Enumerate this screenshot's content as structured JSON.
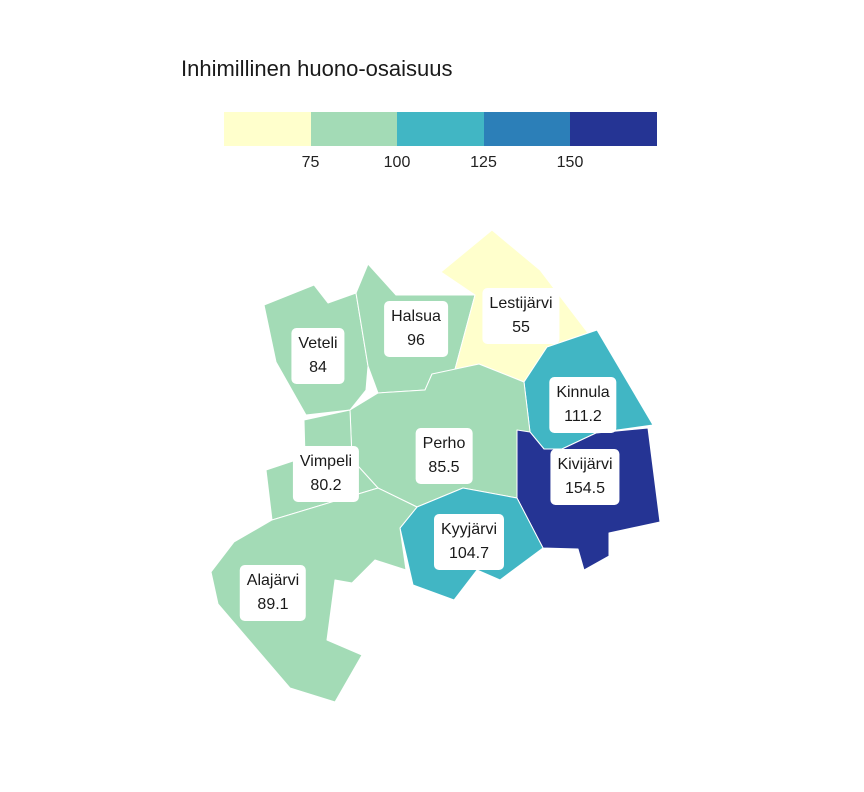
{
  "title": "Inhimillinen huono-osaisuus",
  "legend": {
    "ticks": [
      "75",
      "100",
      "125",
      "150"
    ],
    "bins": [
      {
        "color": "#ffffcc"
      },
      {
        "color": "#a3dbb6"
      },
      {
        "color": "#41b6c4"
      },
      {
        "color": "#2c7fb8"
      },
      {
        "color": "#253494"
      }
    ]
  },
  "regions": [
    {
      "id": "veteli",
      "name": "Veteli",
      "value": "84",
      "color": "#a3dbb6"
    },
    {
      "id": "halsua",
      "name": "Halsua",
      "value": "96",
      "color": "#a3dbb6"
    },
    {
      "id": "lestijarvi",
      "name": "Lestijärvi",
      "value": "55",
      "color": "#ffffcc"
    },
    {
      "id": "kinnula",
      "name": "Kinnula",
      "value": "111.2",
      "color": "#41b6c4"
    },
    {
      "id": "perho",
      "name": "Perho",
      "value": "85.5",
      "color": "#a3dbb6"
    },
    {
      "id": "vimpeli",
      "name": "Vimpeli",
      "value": "80.2",
      "color": "#a3dbb6"
    },
    {
      "id": "kivijarvi",
      "name": "Kivijärvi",
      "value": "154.5",
      "color": "#253494"
    },
    {
      "id": "kyyjarvi",
      "name": "Kyyjärvi",
      "value": "104.7",
      "color": "#41b6c4"
    },
    {
      "id": "alajarvi",
      "name": "Alajärvi",
      "value": "89.1",
      "color": "#a3dbb6"
    }
  ]
}
